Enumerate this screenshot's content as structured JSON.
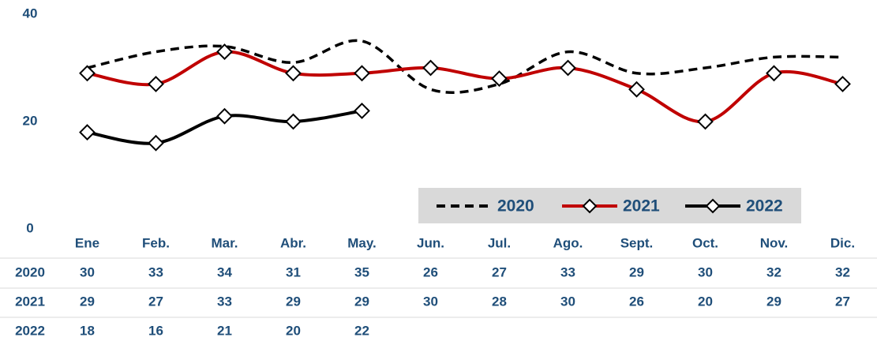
{
  "chart_data": {
    "type": "line",
    "categories": [
      "Ene",
      "Feb.",
      "Mar.",
      "Abr.",
      "May.",
      "Jun.",
      "Jul.",
      "Ago.",
      "Sept.",
      "Oct.",
      "Nov.",
      "Dic."
    ],
    "series": [
      {
        "name": "2020",
        "color": "#000000",
        "style": "dashed",
        "marker": "none",
        "values": [
          30,
          33,
          34,
          31,
          35,
          26,
          27,
          33,
          29,
          30,
          32,
          32
        ]
      },
      {
        "name": "2021",
        "color": "#c00000",
        "style": "solid",
        "marker": "diamond",
        "values": [
          29,
          27,
          33,
          29,
          29,
          30,
          28,
          30,
          26,
          20,
          29,
          27
        ]
      },
      {
        "name": "2022",
        "color": "#000000",
        "style": "solid",
        "marker": "diamond",
        "values": [
          18,
          16,
          21,
          20,
          22,
          null,
          null,
          null,
          null,
          null,
          null,
          null
        ]
      }
    ],
    "ylim": [
      0,
      40
    ],
    "yticks": [
      0,
      20,
      40
    ],
    "grid": false
  }
}
